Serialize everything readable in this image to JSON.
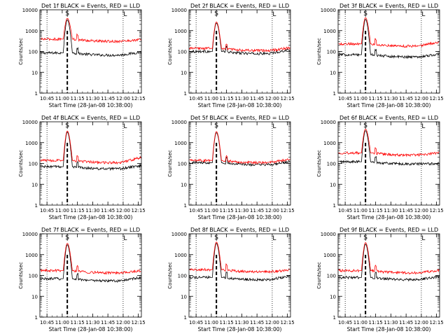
{
  "figure": {
    "colors": {
      "events": "#000000",
      "lld": "#ff0000",
      "axes": "#000000",
      "background": "#ffffff"
    },
    "time_ticks": [
      "10:45",
      "11:00",
      "11:15",
      "11:30",
      "11:45",
      "12:00",
      "12:15"
    ],
    "y_ticks": [
      "1",
      "10",
      "100",
      "1000",
      "10000"
    ],
    "ylabel": "Counts/sec",
    "xlabel": "Start Time (28-Jan-08 10:38:00)",
    "marker_labels": {
      "S": "S",
      "L": "L"
    }
  },
  "chart_data": [
    {
      "type": "line",
      "title": "Det 1f BLACK = Events, RED = LLD",
      "ylim": [
        1,
        10000
      ],
      "log_y": true,
      "x_range": [
        "10:38",
        "12:18"
      ],
      "dotted_lines": [
        "10:45",
        "12:00"
      ],
      "dashed_line": "11:05",
      "marker_S": "11:05",
      "marker_L": "12:00",
      "series": [
        {
          "color": "black",
          "baseline": 85,
          "peak": 3300,
          "end": 100
        },
        {
          "color": "red",
          "baseline": 390,
          "peak": 3900,
          "end": 400
        }
      ]
    },
    {
      "type": "line",
      "title": "Det 2f BLACK = Events, RED = LLD",
      "ylim": [
        1,
        10000
      ],
      "log_y": true,
      "x_range": [
        "10:38",
        "12:18"
      ],
      "dotted_lines": [
        "10:45",
        "12:00"
      ],
      "dashed_line": "11:05",
      "marker_S": "11:05",
      "marker_L": "12:00",
      "series": [
        {
          "color": "black",
          "baseline": 100,
          "peak": 2300,
          "end": 130
        },
        {
          "color": "red",
          "baseline": 140,
          "peak": 2600,
          "end": 160
        }
      ]
    },
    {
      "type": "line",
      "title": "Det 3f BLACK = Events, RED = LLD",
      "ylim": [
        1,
        10000
      ],
      "log_y": true,
      "x_range": [
        "10:38",
        "12:18"
      ],
      "dotted_lines": [
        "10:45",
        "12:00"
      ],
      "dashed_line": "11:05",
      "marker_S": "11:05",
      "marker_L": "12:00",
      "series": [
        {
          "color": "black",
          "baseline": 70,
          "peak": 3500,
          "end": 80
        },
        {
          "color": "red",
          "baseline": 230,
          "peak": 4200,
          "end": 300
        }
      ]
    },
    {
      "type": "line",
      "title": "Det 4f BLACK = Events, RED = LLD",
      "ylim": [
        1,
        10000
      ],
      "log_y": true,
      "x_range": [
        "10:38",
        "12:18"
      ],
      "dotted_lines": [
        "10:45",
        "12:00"
      ],
      "dashed_line": "11:05",
      "marker_S": "11:05",
      "marker_L": "12:00",
      "series": [
        {
          "color": "black",
          "baseline": 70,
          "peak": 3200,
          "end": 85
        },
        {
          "color": "red",
          "baseline": 140,
          "peak": 3600,
          "end": 200
        }
      ]
    },
    {
      "type": "line",
      "title": "Det 5f BLACK = Events, RED = LLD",
      "ylim": [
        1,
        10000
      ],
      "log_y": true,
      "x_range": [
        "10:38",
        "12:18"
      ],
      "dotted_lines": [
        "10:45",
        "12:00"
      ],
      "dashed_line": "11:05",
      "marker_S": "11:05",
      "marker_L": "12:00",
      "series": [
        {
          "color": "black",
          "baseline": 110,
          "peak": 3000,
          "end": 130
        },
        {
          "color": "red",
          "baseline": 140,
          "peak": 3400,
          "end": 170
        }
      ]
    },
    {
      "type": "line",
      "title": "Det 6f BLACK = Events, RED = LLD",
      "ylim": [
        1,
        10000
      ],
      "log_y": true,
      "x_range": [
        "10:38",
        "12:18"
      ],
      "dotted_lines": [
        "10:45",
        "12:00"
      ],
      "dashed_line": "11:05",
      "marker_S": "11:05",
      "marker_L": "12:00",
      "series": [
        {
          "color": "black",
          "baseline": 120,
          "peak": 3800,
          "end": 110
        },
        {
          "color": "red",
          "baseline": 320,
          "peak": 4500,
          "end": 350
        }
      ]
    },
    {
      "type": "line",
      "title": "Det 7f BLACK = Events, RED = LLD",
      "ylim": [
        1,
        10000
      ],
      "log_y": true,
      "x_range": [
        "10:38",
        "12:18"
      ],
      "dotted_lines": [
        "10:45",
        "12:00"
      ],
      "dashed_line": "11:05",
      "marker_S": "11:05",
      "marker_L": "12:00",
      "series": [
        {
          "color": "black",
          "baseline": 70,
          "peak": 3000,
          "end": 85
        },
        {
          "color": "red",
          "baseline": 170,
          "peak": 3500,
          "end": 180
        }
      ]
    },
    {
      "type": "line",
      "title": "Det 8f BLACK = Events, RED = LLD",
      "ylim": [
        1,
        10000
      ],
      "log_y": true,
      "x_range": [
        "10:38",
        "12:18"
      ],
      "dotted_lines": [
        "10:45",
        "12:00"
      ],
      "dashed_line": "11:05",
      "marker_S": "11:05",
      "marker_L": "12:00",
      "series": [
        {
          "color": "black",
          "baseline": 80,
          "peak": 3500,
          "end": 100
        },
        {
          "color": "red",
          "baseline": 190,
          "peak": 4000,
          "end": 200
        }
      ]
    },
    {
      "type": "line",
      "title": "Det 9f BLACK = Events, RED = LLD",
      "ylim": [
        1,
        10000
      ],
      "log_y": true,
      "x_range": [
        "10:38",
        "12:18"
      ],
      "dotted_lines": [
        "10:45",
        "12:00"
      ],
      "dashed_line": "11:05",
      "marker_S": "11:05",
      "marker_L": "12:00",
      "series": [
        {
          "color": "black",
          "baseline": 80,
          "peak": 3200,
          "end": 95
        },
        {
          "color": "red",
          "baseline": 170,
          "peak": 3800,
          "end": 190
        }
      ]
    }
  ]
}
